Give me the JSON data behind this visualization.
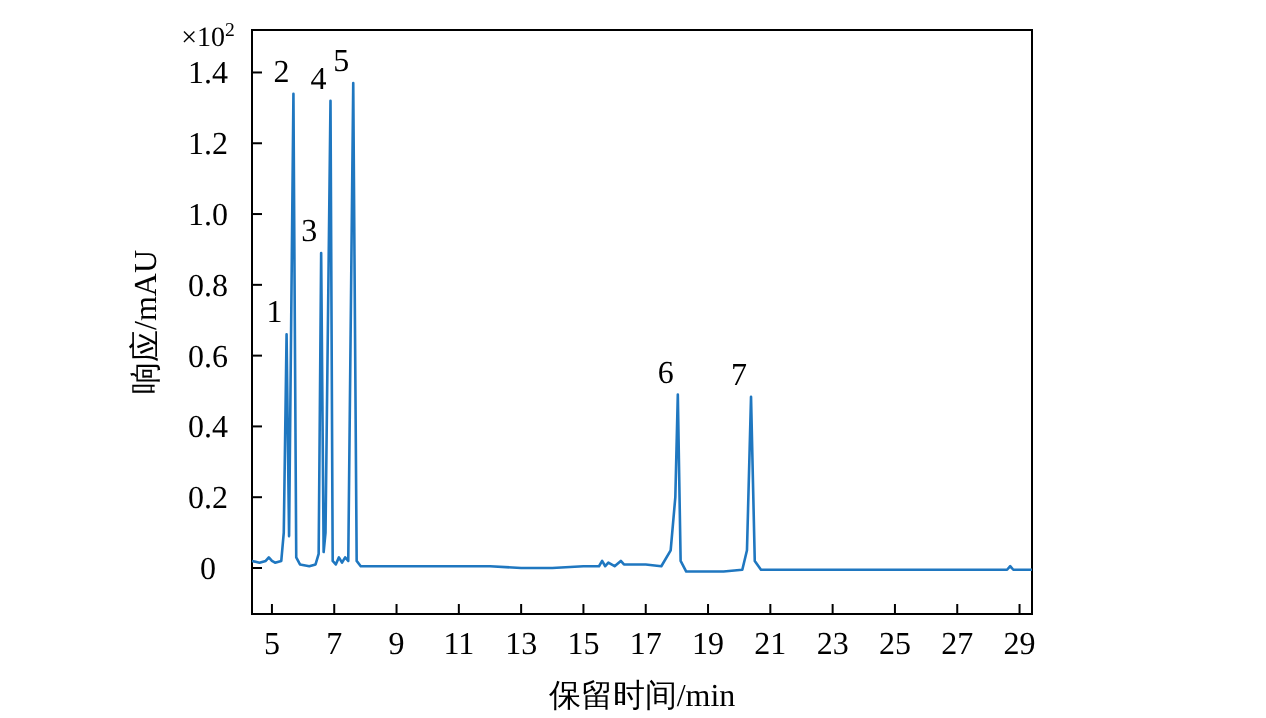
{
  "chart_data": {
    "type": "line",
    "xlabel": "保留时间/min",
    "ylabel": "响应/mAU",
    "x": [
      4.36,
      4.6,
      4.8,
      4.9,
      5.0,
      5.1,
      5.3,
      5.38,
      5.47,
      5.55,
      5.69,
      5.78,
      5.9,
      6.2,
      6.4,
      6.5,
      6.58,
      6.66,
      6.72,
      6.88,
      6.95,
      7.05,
      7.15,
      7.25,
      7.35,
      7.45,
      7.61,
      7.72,
      7.85,
      8.5,
      10,
      12,
      13,
      14,
      15,
      15.5,
      15.6,
      15.7,
      15.8,
      16.0,
      16.2,
      16.3,
      17,
      17.5,
      17.8,
      17.95,
      18.03,
      18.12,
      18.3,
      19,
      19.5,
      20.1,
      20.25,
      20.38,
      20.5,
      20.7,
      22,
      25,
      28.6,
      28.7,
      28.8,
      29.4
    ],
    "series": [
      {
        "color": "#1f77c0",
        "values": [
          0.02,
          0.015,
          0.02,
          0.03,
          0.02,
          0.015,
          0.02,
          0.1,
          0.66,
          0.09,
          1.34,
          0.03,
          0.01,
          0.005,
          0.01,
          0.04,
          0.89,
          0.045,
          0.1,
          1.32,
          0.02,
          0.01,
          0.03,
          0.015,
          0.03,
          0.02,
          1.37,
          0.02,
          0.005,
          0.005,
          0.005,
          0.005,
          0.0,
          0.0,
          0.005,
          0.005,
          0.02,
          0.005,
          0.015,
          0.005,
          0.02,
          0.01,
          0.01,
          0.005,
          0.05,
          0.2,
          0.49,
          0.02,
          -0.01,
          -0.01,
          -0.01,
          -0.005,
          0.05,
          0.484,
          0.02,
          -0.005,
          -0.005,
          -0.005,
          -0.005,
          0.005,
          -0.005,
          -0.005
        ]
      }
    ],
    "xlim": [
      4.36,
      29.4
    ],
    "ylim": [
      -0.13,
      1.52
    ],
    "xticks": [
      5,
      7,
      9,
      11,
      13,
      15,
      17,
      19,
      21,
      23,
      25,
      27,
      29
    ],
    "yticks": [
      0,
      0.2,
      0.4,
      0.6,
      0.8,
      {
        "value": 1,
        "label": "1.0"
      },
      1.2,
      1.4
    ],
    "annotations": [
      "×10$^{2}$",
      {
        "text": "1",
        "x": 5.47,
        "y": 0.66
      },
      {
        "text": "2",
        "x": 5.69,
        "y": 1.34
      },
      {
        "text": "3",
        "x": 6.58,
        "y": 0.89
      },
      {
        "text": "4",
        "x": 6.88,
        "y": 1.32
      },
      {
        "text": "5",
        "x": 7.61,
        "y": 1.37
      },
      {
        "text": "6",
        "x": 18.03,
        "y": 0.49
      },
      {
        "text": "7",
        "x": 20.38,
        "y": 0.484
      }
    ]
  }
}
